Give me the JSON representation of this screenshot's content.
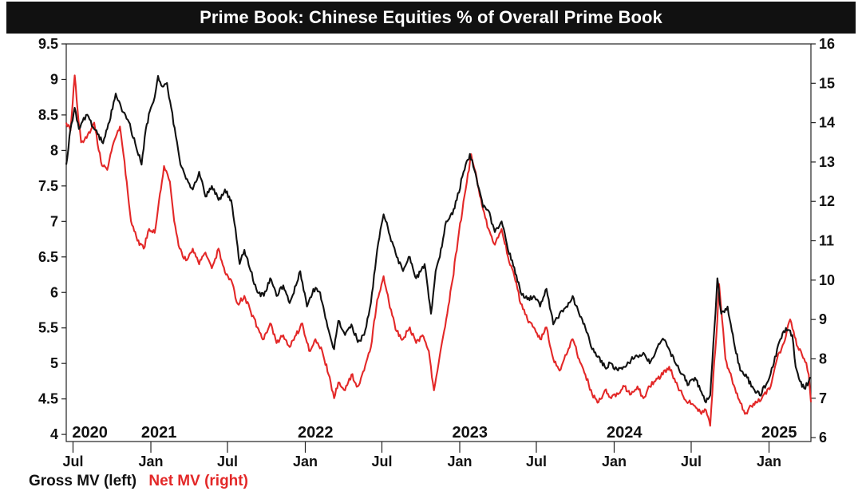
{
  "title": "Prime Book: Chinese Equities % of Overall Prime Book",
  "chart_data": {
    "type": "line",
    "title": "Prime Book: Chinese Equities % of Overall Prime Book",
    "x_range": [
      "2020-06-15",
      "2025-04-10"
    ],
    "x_ticks": [
      {
        "date": "2020-07-01",
        "label": "Jul"
      },
      {
        "date": "2021-01-01",
        "label": "Jan"
      },
      {
        "date": "2021-07-01",
        "label": "Jul"
      },
      {
        "date": "2022-01-01",
        "label": "Jan"
      },
      {
        "date": "2022-07-01",
        "label": "Jul"
      },
      {
        "date": "2023-01-01",
        "label": "Jan"
      },
      {
        "date": "2023-07-01",
        "label": "Jul"
      },
      {
        "date": "2024-01-01",
        "label": "Jan"
      },
      {
        "date": "2024-07-01",
        "label": "Jul"
      },
      {
        "date": "2025-01-01",
        "label": "Jan"
      }
    ],
    "year_labels": [
      {
        "date": "2020-08-10",
        "label": "2020"
      },
      {
        "date": "2021-01-20",
        "label": "2021"
      },
      {
        "date": "2022-01-25",
        "label": "2022"
      },
      {
        "date": "2023-01-25",
        "label": "2023"
      },
      {
        "date": "2024-01-25",
        "label": "2024"
      },
      {
        "date": "2025-01-25",
        "label": "2025"
      }
    ],
    "y_left": {
      "min": 3.9,
      "max": 9.5,
      "ticks": [
        "4",
        "4.5",
        "5",
        "5.5",
        "6",
        "6.5",
        "7",
        "7.5",
        "8",
        "8.5",
        "9",
        "9.5"
      ]
    },
    "y_right": {
      "min": 5.9,
      "max": 16,
      "ticks": [
        "6",
        "7",
        "8",
        "9",
        "10",
        "11",
        "12",
        "13",
        "14",
        "15",
        "16"
      ]
    },
    "grid": false,
    "legend_position": "bottom-left",
    "series": [
      {
        "name": "Gross MV (left)",
        "axis": "left",
        "color": "#111111",
        "points": [
          [
            "2020-06-15",
            7.8
          ],
          [
            "2020-06-25",
            8.3
          ],
          [
            "2020-07-05",
            8.6
          ],
          [
            "2020-07-15",
            8.3
          ],
          [
            "2020-08-01",
            8.5
          ],
          [
            "2020-08-20",
            8.3
          ],
          [
            "2020-09-10",
            8.1
          ],
          [
            "2020-09-25",
            8.4
          ],
          [
            "2020-10-10",
            8.8
          ],
          [
            "2020-10-25",
            8.55
          ],
          [
            "2020-11-10",
            8.4
          ],
          [
            "2020-11-25",
            8.1
          ],
          [
            "2020-12-10",
            7.8
          ],
          [
            "2020-12-20",
            8.3
          ],
          [
            "2021-01-01",
            8.6
          ],
          [
            "2021-01-10",
            8.75
          ],
          [
            "2021-01-18",
            9.05
          ],
          [
            "2021-01-28",
            8.9
          ],
          [
            "2021-02-08",
            8.95
          ],
          [
            "2021-02-18",
            8.6
          ],
          [
            "2021-03-01",
            8.2
          ],
          [
            "2021-03-12",
            7.8
          ],
          [
            "2021-03-25",
            7.6
          ],
          [
            "2021-04-10",
            7.45
          ],
          [
            "2021-04-25",
            7.7
          ],
          [
            "2021-05-10",
            7.35
          ],
          [
            "2021-05-25",
            7.5
          ],
          [
            "2021-06-10",
            7.3
          ],
          [
            "2021-06-25",
            7.45
          ],
          [
            "2021-07-10",
            7.3
          ],
          [
            "2021-07-20",
            6.9
          ],
          [
            "2021-07-30",
            6.4
          ],
          [
            "2021-08-10",
            6.6
          ],
          [
            "2021-08-25",
            6.3
          ],
          [
            "2021-09-10",
            6.0
          ],
          [
            "2021-09-25",
            5.95
          ],
          [
            "2021-10-10",
            6.2
          ],
          [
            "2021-10-25",
            5.95
          ],
          [
            "2021-11-10",
            6.1
          ],
          [
            "2021-11-25",
            5.85
          ],
          [
            "2021-12-10",
            6.1
          ],
          [
            "2021-12-20",
            6.3
          ],
          [
            "2022-01-05",
            5.8
          ],
          [
            "2022-01-20",
            6.05
          ],
          [
            "2022-02-05",
            6.0
          ],
          [
            "2022-02-20",
            5.6
          ],
          [
            "2022-03-10",
            5.2
          ],
          [
            "2022-03-20",
            5.6
          ],
          [
            "2022-04-05",
            5.4
          ],
          [
            "2022-04-20",
            5.55
          ],
          [
            "2022-05-05",
            5.3
          ],
          [
            "2022-05-20",
            5.4
          ],
          [
            "2022-06-05",
            5.85
          ],
          [
            "2022-06-20",
            6.6
          ],
          [
            "2022-07-05",
            7.1
          ],
          [
            "2022-07-20",
            6.8
          ],
          [
            "2022-08-05",
            6.5
          ],
          [
            "2022-08-20",
            6.3
          ],
          [
            "2022-09-05",
            6.5
          ],
          [
            "2022-09-20",
            6.2
          ],
          [
            "2022-10-10",
            6.4
          ],
          [
            "2022-10-25",
            5.7
          ],
          [
            "2022-11-05",
            6.3
          ],
          [
            "2022-11-15",
            6.5
          ],
          [
            "2022-11-30",
            7.0
          ],
          [
            "2022-12-15",
            7.1
          ],
          [
            "2022-12-25",
            7.3
          ],
          [
            "2023-01-10",
            7.7
          ],
          [
            "2023-01-25",
            7.95
          ],
          [
            "2023-02-10",
            7.6
          ],
          [
            "2023-02-25",
            7.2
          ],
          [
            "2023-03-10",
            7.15
          ],
          [
            "2023-03-25",
            6.85
          ],
          [
            "2023-04-10",
            7.0
          ],
          [
            "2023-04-25",
            6.6
          ],
          [
            "2023-05-10",
            6.35
          ],
          [
            "2023-05-25",
            6.0
          ],
          [
            "2023-06-10",
            5.9
          ],
          [
            "2023-06-25",
            5.95
          ],
          [
            "2023-07-10",
            5.8
          ],
          [
            "2023-07-25",
            6.05
          ],
          [
            "2023-08-10",
            5.55
          ],
          [
            "2023-08-25",
            5.7
          ],
          [
            "2023-09-10",
            5.8
          ],
          [
            "2023-09-25",
            5.95
          ],
          [
            "2023-10-10",
            5.7
          ],
          [
            "2023-10-25",
            5.5
          ],
          [
            "2023-11-10",
            5.2
          ],
          [
            "2023-11-25",
            5.1
          ],
          [
            "2023-12-10",
            4.95
          ],
          [
            "2023-12-25",
            5.0
          ],
          [
            "2024-01-10",
            4.9
          ],
          [
            "2024-01-25",
            4.95
          ],
          [
            "2024-02-10",
            5.05
          ],
          [
            "2024-02-25",
            5.1
          ],
          [
            "2024-03-10",
            5.15
          ],
          [
            "2024-03-25",
            5.0
          ],
          [
            "2024-04-10",
            5.2
          ],
          [
            "2024-04-25",
            5.35
          ],
          [
            "2024-05-10",
            5.2
          ],
          [
            "2024-05-25",
            5.0
          ],
          [
            "2024-06-10",
            4.85
          ],
          [
            "2024-06-25",
            4.7
          ],
          [
            "2024-07-10",
            4.8
          ],
          [
            "2024-07-25",
            4.6
          ],
          [
            "2024-08-05",
            4.45
          ],
          [
            "2024-08-15",
            4.55
          ],
          [
            "2024-08-25",
            5.5
          ],
          [
            "2024-09-01",
            6.2
          ],
          [
            "2024-09-10",
            5.7
          ],
          [
            "2024-09-25",
            5.8
          ],
          [
            "2024-10-10",
            5.3
          ],
          [
            "2024-10-25",
            4.9
          ],
          [
            "2024-11-10",
            4.8
          ],
          [
            "2024-11-25",
            4.65
          ],
          [
            "2024-12-10",
            4.55
          ],
          [
            "2024-12-25",
            4.7
          ],
          [
            "2025-01-10",
            4.95
          ],
          [
            "2025-01-25",
            5.3
          ],
          [
            "2025-02-10",
            5.5
          ],
          [
            "2025-02-25",
            5.4
          ],
          [
            "2025-03-05",
            4.95
          ],
          [
            "2025-03-15",
            4.75
          ],
          [
            "2025-03-25",
            4.65
          ],
          [
            "2025-04-05",
            4.75
          ],
          [
            "2025-04-10",
            4.8
          ]
        ]
      },
      {
        "name": "Net MV (right)",
        "axis": "right",
        "color": "#e32828",
        "points": [
          [
            "2020-06-15",
            14.0
          ],
          [
            "2020-06-25",
            13.8
          ],
          [
            "2020-07-05",
            15.2
          ],
          [
            "2020-07-12",
            14.3
          ],
          [
            "2020-07-20",
            13.5
          ],
          [
            "2020-08-05",
            13.7
          ],
          [
            "2020-08-20",
            14.0
          ],
          [
            "2020-09-05",
            13.0
          ],
          [
            "2020-09-20",
            12.8
          ],
          [
            "2020-10-05",
            13.5
          ],
          [
            "2020-10-20",
            13.9
          ],
          [
            "2020-11-05",
            12.5
          ],
          [
            "2020-11-15",
            11.5
          ],
          [
            "2020-11-30",
            11.0
          ],
          [
            "2020-12-15",
            10.8
          ],
          [
            "2020-12-28",
            11.3
          ],
          [
            "2021-01-10",
            11.2
          ],
          [
            "2021-01-20",
            12.0
          ],
          [
            "2021-02-01",
            12.9
          ],
          [
            "2021-02-15",
            12.5
          ],
          [
            "2021-02-25",
            11.5
          ],
          [
            "2021-03-10",
            10.8
          ],
          [
            "2021-03-25",
            10.5
          ],
          [
            "2021-04-10",
            10.8
          ],
          [
            "2021-04-25",
            10.4
          ],
          [
            "2021-05-10",
            10.7
          ],
          [
            "2021-05-25",
            10.3
          ],
          [
            "2021-06-10",
            10.8
          ],
          [
            "2021-06-25",
            10.2
          ],
          [
            "2021-07-10",
            10.0
          ],
          [
            "2021-07-25",
            9.4
          ],
          [
            "2021-08-10",
            9.6
          ],
          [
            "2021-08-25",
            9.2
          ],
          [
            "2021-09-10",
            8.8
          ],
          [
            "2021-09-25",
            8.5
          ],
          [
            "2021-10-10",
            8.9
          ],
          [
            "2021-10-25",
            8.4
          ],
          [
            "2021-11-10",
            8.6
          ],
          [
            "2021-11-25",
            8.3
          ],
          [
            "2021-12-10",
            8.6
          ],
          [
            "2021-12-25",
            8.9
          ],
          [
            "2022-01-10",
            8.2
          ],
          [
            "2022-01-25",
            8.5
          ],
          [
            "2022-02-10",
            8.2
          ],
          [
            "2022-02-25",
            7.6
          ],
          [
            "2022-03-10",
            7.0
          ],
          [
            "2022-03-20",
            7.4
          ],
          [
            "2022-04-05",
            7.2
          ],
          [
            "2022-04-20",
            7.6
          ],
          [
            "2022-05-05",
            7.3
          ],
          [
            "2022-05-20",
            7.7
          ],
          [
            "2022-06-05",
            8.3
          ],
          [
            "2022-06-20",
            9.5
          ],
          [
            "2022-07-05",
            10.1
          ],
          [
            "2022-07-20",
            9.3
          ],
          [
            "2022-08-05",
            8.7
          ],
          [
            "2022-08-20",
            8.5
          ],
          [
            "2022-09-05",
            8.8
          ],
          [
            "2022-09-20",
            8.4
          ],
          [
            "2022-10-05",
            8.6
          ],
          [
            "2022-10-20",
            8.2
          ],
          [
            "2022-11-01",
            7.2
          ],
          [
            "2022-11-15",
            8.1
          ],
          [
            "2022-11-30",
            9.0
          ],
          [
            "2022-12-15",
            10.0
          ],
          [
            "2022-12-30",
            11.2
          ],
          [
            "2023-01-15",
            12.3
          ],
          [
            "2023-01-28",
            13.2
          ],
          [
            "2023-02-10",
            12.6
          ],
          [
            "2023-02-25",
            11.8
          ],
          [
            "2023-03-10",
            11.3
          ],
          [
            "2023-03-25",
            10.9
          ],
          [
            "2023-04-10",
            11.3
          ],
          [
            "2023-04-25",
            10.6
          ],
          [
            "2023-05-10",
            10.1
          ],
          [
            "2023-05-25",
            9.4
          ],
          [
            "2023-06-10",
            9.0
          ],
          [
            "2023-06-25",
            8.8
          ],
          [
            "2023-07-10",
            8.5
          ],
          [
            "2023-07-25",
            8.8
          ],
          [
            "2023-08-10",
            8.0
          ],
          [
            "2023-08-25",
            7.7
          ],
          [
            "2023-09-10",
            8.1
          ],
          [
            "2023-09-25",
            8.5
          ],
          [
            "2023-10-10",
            8.0
          ],
          [
            "2023-10-25",
            7.6
          ],
          [
            "2023-11-10",
            7.1
          ],
          [
            "2023-11-25",
            6.9
          ],
          [
            "2023-12-10",
            7.2
          ],
          [
            "2023-12-25",
            7.0
          ],
          [
            "2024-01-10",
            7.1
          ],
          [
            "2024-01-25",
            7.3
          ],
          [
            "2024-02-10",
            7.1
          ],
          [
            "2024-02-25",
            7.3
          ],
          [
            "2024-03-10",
            7.0
          ],
          [
            "2024-03-25",
            7.3
          ],
          [
            "2024-04-10",
            7.5
          ],
          [
            "2024-04-25",
            7.6
          ],
          [
            "2024-05-10",
            7.8
          ],
          [
            "2024-05-25",
            7.4
          ],
          [
            "2024-06-10",
            7.1
          ],
          [
            "2024-06-25",
            6.9
          ],
          [
            "2024-07-10",
            6.8
          ],
          [
            "2024-07-25",
            6.6
          ],
          [
            "2024-08-05",
            6.7
          ],
          [
            "2024-08-15",
            6.3
          ],
          [
            "2024-08-22",
            7.5
          ],
          [
            "2024-09-01",
            9.0
          ],
          [
            "2024-09-05",
            9.9
          ],
          [
            "2024-09-12",
            9.0
          ],
          [
            "2024-09-20",
            8.0
          ],
          [
            "2024-10-05",
            7.5
          ],
          [
            "2024-10-20",
            7.0
          ],
          [
            "2024-11-05",
            6.6
          ],
          [
            "2024-11-20",
            6.8
          ],
          [
            "2024-12-05",
            6.9
          ],
          [
            "2024-12-20",
            7.1
          ],
          [
            "2025-01-05",
            7.3
          ],
          [
            "2025-01-20",
            8.0
          ],
          [
            "2025-02-05",
            8.4
          ],
          [
            "2025-02-20",
            9.0
          ],
          [
            "2025-02-28",
            8.7
          ],
          [
            "2025-03-10",
            8.3
          ],
          [
            "2025-03-20",
            8.1
          ],
          [
            "2025-03-30",
            7.9
          ],
          [
            "2025-04-05",
            7.6
          ],
          [
            "2025-04-10",
            6.9
          ]
        ]
      }
    ]
  },
  "legend": {
    "left_label": "Gross MV (left)",
    "right_label": "Net MV (right)"
  }
}
